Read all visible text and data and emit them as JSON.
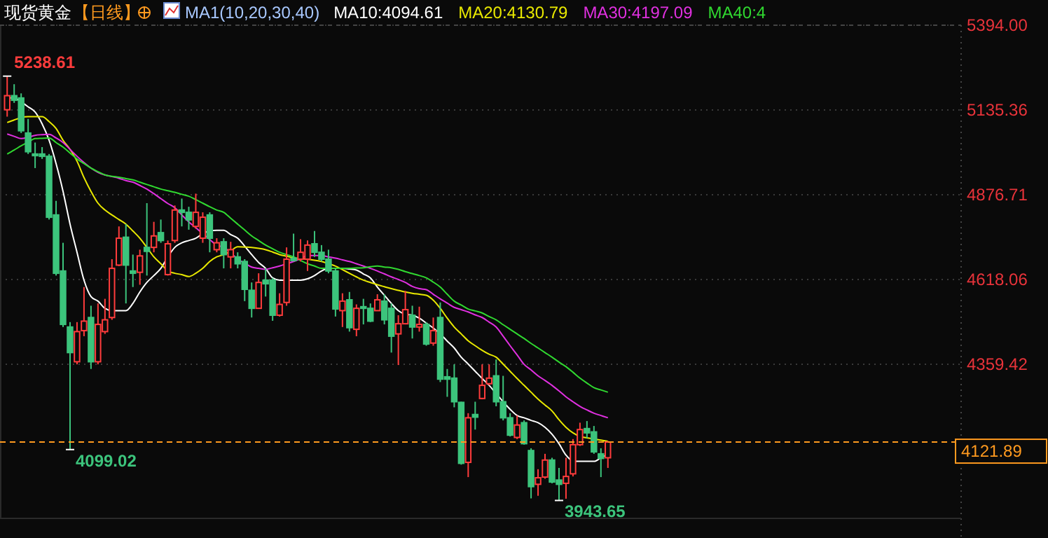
{
  "chart_data": {
    "type": "candlestick",
    "title": "现货黄金",
    "subtitle": "【日线】",
    "legend_title": "MA1(10,20,30,40)",
    "legend": "top",
    "grid": "y",
    "tick_labels": "y",
    "categories": [
      null,
      null,
      null,
      null,
      null,
      null,
      null,
      null,
      null,
      null,
      null,
      null,
      null,
      null,
      null,
      null,
      null,
      null,
      null,
      null,
      null,
      null,
      null,
      null,
      null,
      null,
      null,
      null,
      null,
      null,
      null,
      null,
      null,
      null,
      null,
      null,
      null,
      null,
      null,
      null,
      null,
      null,
      null,
      null,
      null,
      null,
      null,
      null,
      null,
      null,
      null,
      null,
      null,
      null,
      null,
      null,
      null,
      null,
      null,
      null,
      null,
      null,
      null,
      null,
      null,
      null,
      null,
      null,
      null,
      null,
      null,
      null,
      null,
      null,
      null,
      null,
      null,
      null,
      null,
      null,
      null,
      null,
      null,
      null,
      null,
      null,
      null
    ],
    "ylim": [
      3889,
      5394
    ],
    "yticks": [
      {
        "value": 5394,
        "label": "5394.00"
      },
      5135.36,
      4876.71,
      4618.06,
      4359.42
    ],
    "ref_lines": [
      {
        "axis": "y",
        "value": 4121.89,
        "label": "4121.89",
        "color": "#ff9a1f",
        "line_style": "dashed"
      }
    ],
    "annotations": [
      "5238.61",
      "4099.02",
      "3943.65"
    ],
    "series": [
      {
        "type": "candlestick",
        "ohlc": [
          [
            5136,
            5238.61,
            5115,
            5179
          ],
          [
            5179,
            5214,
            5157,
            5165
          ],
          [
            5172,
            5186,
            5065,
            5072
          ],
          [
            5065,
            5108,
            5001,
            5008
          ],
          [
            5001,
            5036,
            4958,
            4996
          ],
          [
            5001,
            5022,
            4986,
            4994
          ],
          [
            4994,
            5001,
            4801,
            4808
          ],
          [
            4815,
            4858,
            4630,
            4637
          ],
          [
            4644,
            4730,
            4473,
            4481
          ],
          [
            4473,
            4488,
            4099.02,
            4395
          ],
          [
            4367,
            4488,
            4359,
            4459
          ],
          [
            4462,
            4595,
            4445,
            4491
          ],
          [
            4502,
            4538,
            4345,
            4367
          ],
          [
            4367,
            4545,
            4359,
            4481
          ],
          [
            4459,
            4559,
            4452,
            4495
          ],
          [
            4502,
            4680,
            4495,
            4652
          ],
          [
            4662,
            4780,
            4659,
            4744
          ],
          [
            4747,
            4787,
            4545,
            4662
          ],
          [
            4644,
            4694,
            4595,
            4637
          ],
          [
            4640,
            4709,
            4602,
            4690
          ],
          [
            4716,
            4851,
            4630,
            4704
          ],
          [
            4716,
            4794,
            4701,
            4751
          ],
          [
            4761,
            4801,
            4730,
            4737
          ],
          [
            4633,
            4737,
            4630,
            4727
          ],
          [
            4737,
            4844,
            4730,
            4830
          ],
          [
            4830,
            4865,
            4780,
            4823
          ],
          [
            4823,
            4840,
            4770,
            4800
          ],
          [
            4780,
            4880,
            4773,
            4823
          ],
          [
            4744,
            4823,
            4730,
            4808
          ],
          [
            4815,
            4823,
            4701,
            4744
          ],
          [
            4709,
            4744,
            4701,
            4730
          ],
          [
            4733,
            4744,
            4652,
            4694
          ],
          [
            4687,
            4733,
            4652,
            4709
          ],
          [
            4687,
            4701,
            4652,
            4666
          ],
          [
            4673,
            4680,
            4552,
            4588
          ],
          [
            4585,
            4609,
            4502,
            4530
          ],
          [
            4530,
            4637,
            4530,
            4609
          ],
          [
            4616,
            4652,
            4566,
            4605
          ],
          [
            4616,
            4623,
            4492,
            4509
          ],
          [
            4509,
            4576,
            4505,
            4542
          ],
          [
            4548,
            4716,
            4538,
            4680
          ],
          [
            4683,
            4758,
            4673,
            4676
          ],
          [
            4680,
            4741,
            4673,
            4701
          ],
          [
            4680,
            4737,
            4644,
            4723
          ],
          [
            4727,
            4766,
            4687,
            4701
          ],
          [
            4701,
            4723,
            4673,
            4680
          ],
          [
            4680,
            4709,
            4637,
            4644
          ],
          [
            4644,
            4652,
            4505,
            4528
          ],
          [
            4523,
            4576,
            4473,
            4552
          ],
          [
            4556,
            4580,
            4459,
            4471
          ],
          [
            4466,
            4542,
            4445,
            4530
          ],
          [
            4535,
            4559,
            4481,
            4530
          ],
          [
            4530,
            4545,
            4488,
            4491
          ],
          [
            4523,
            4573,
            4523,
            4556
          ],
          [
            4552,
            4573,
            4481,
            4495
          ],
          [
            4530,
            4545,
            4395,
            4445
          ],
          [
            4452,
            4509,
            4357,
            4483
          ],
          [
            4483,
            4583,
            4481,
            4526
          ],
          [
            4509,
            4538,
            4438,
            4473
          ],
          [
            4473,
            4535,
            4459,
            4481
          ],
          [
            4481,
            4488,
            4416,
            4421
          ],
          [
            4424,
            4502,
            4416,
            4462
          ],
          [
            4502,
            4548,
            4305,
            4314
          ],
          [
            4321,
            4345,
            4260,
            4314
          ],
          [
            4317,
            4359,
            4228,
            4245
          ],
          [
            4243,
            4245,
            4053,
            4057
          ],
          [
            4060,
            4210,
            4015,
            4196
          ],
          [
            4206,
            4245,
            4160,
            4198
          ],
          [
            4255,
            4359,
            4253,
            4295
          ],
          [
            4300,
            4359,
            4295,
            4317
          ],
          [
            4324,
            4374,
            4231,
            4245
          ],
          [
            4245,
            4324,
            4188,
            4196
          ],
          [
            4196,
            4210,
            4139,
            4143
          ],
          [
            4136,
            4203,
            4131,
            4174
          ],
          [
            4181,
            4188,
            4114,
            4117
          ],
          [
            4096,
            4103,
            3950,
            3986
          ],
          [
            3993,
            4039,
            3958,
            4013
          ],
          [
            4015,
            4086,
            4010,
            4067
          ],
          [
            4067,
            4074,
            3996,
            4000
          ],
          [
            4006,
            4043,
            3943.65,
            3993
          ],
          [
            3996,
            4074,
            3949,
            4017
          ],
          [
            4025,
            4131,
            4017,
            4114
          ],
          [
            4114,
            4181,
            4110,
            4160
          ],
          [
            4163,
            4186,
            4134,
            4150
          ],
          [
            4153,
            4171,
            4086,
            4092
          ],
          [
            4086,
            4103,
            4015,
            4072
          ],
          [
            4074,
            4125,
            4043,
            4121.89
          ]
        ],
        "colors": [
          "#ff3c3c",
          "#3cc47c",
          "#3cc47c",
          "#3cc47c",
          "#3cc47c",
          "#3cc47c",
          "#3cc47c",
          "#3cc47c",
          "#3cc47c",
          "#3cc47c",
          "#ff3c3c",
          "#ff3c3c",
          "#3cc47c",
          "#ff3c3c",
          "#ff3c3c",
          "#ff3c3c",
          "#ff3c3c",
          "#3cc47c",
          "#3cc47c",
          "#ff3c3c",
          "#3cc47c",
          "#ff3c3c",
          "#3cc47c",
          "#ff3c3c",
          "#ff3c3c",
          "#3cc47c",
          "#3cc47c",
          "#ff3c3c",
          "#ff3c3c",
          "#3cc47c",
          "#ff3c3c",
          "#3cc47c",
          "#ff3c3c",
          "#3cc47c",
          "#3cc47c",
          "#3cc47c",
          "#ff3c3c",
          "#3cc47c",
          "#3cc47c",
          "#ff3c3c",
          "#ff3c3c",
          "#3cc47c",
          "#ff3c3c",
          "#ff3c3c",
          "#3cc47c",
          "#3cc47c",
          "#3cc47c",
          "#3cc47c",
          "#ff3c3c",
          "#3cc47c",
          "#ff3c3c",
          "#3cc47c",
          "#3cc47c",
          "#ff3c3c",
          "#3cc47c",
          "#3cc47c",
          "#ff3c3c",
          "#ff3c3c",
          "#3cc47c",
          "#ff3c3c",
          "#3cc47c",
          "#ff3c3c",
          "#3cc47c",
          "#3cc47c",
          "#3cc47c",
          "#3cc47c",
          "#ff3c3c",
          "#3cc47c",
          "#ff3c3c",
          "#ff3c3c",
          "#3cc47c",
          "#3cc47c",
          "#3cc47c",
          "#ff3c3c",
          "#3cc47c",
          "#3cc47c",
          "#ff3c3c",
          "#ff3c3c",
          "#3cc47c",
          "#3cc47c",
          "#ff3c3c",
          "#ff3c3c",
          "#ff3c3c",
          "#3cc47c",
          "#3cc47c",
          "#3cc47c",
          "#ff3c3c"
        ]
      },
      {
        "type": "line",
        "name": "MA10:4094.61",
        "color": "#ffffff",
        "values": [
          5172,
          5172,
          5160,
          5145,
          5129,
          5093,
          5043,
          4972,
          4887,
          4787,
          4701,
          4616,
          4566,
          4552,
          4530,
          4523,
          4523,
          4523,
          4545,
          4580,
          4609,
          4630,
          4652,
          4687,
          4716,
          4730,
          4737,
          4744,
          4758,
          4766,
          4768,
          4768,
          4755,
          4744,
          4720,
          4694,
          4670,
          4652,
          4623,
          4616,
          4616,
          4616,
          4616,
          4620,
          4630,
          4644,
          4652,
          4652,
          4652,
          4650,
          4647,
          4635,
          4623,
          4595,
          4570,
          4545,
          4523,
          4512,
          4509,
          4500,
          4485,
          4470,
          4452,
          4430,
          4409,
          4381,
          4360,
          4338,
          4316,
          4295,
          4270,
          4245,
          4222,
          4203,
          4196,
          4188,
          4181,
          4167,
          4146,
          4117,
          4082,
          4064,
          4063,
          4063,
          4063,
          4074,
          4085
        ]
      },
      {
        "type": "line",
        "name": "MA20:4130.79",
        "color": "#e8e800",
        "values": [
          5097,
          5105,
          5112,
          5115,
          5115,
          5115,
          5100,
          5079,
          5043,
          5015,
          4979,
          4929,
          4887,
          4851,
          4830,
          4815,
          4801,
          4787,
          4766,
          4744,
          4716,
          4687,
          4666,
          4644,
          4637,
          4633,
          4627,
          4637,
          4652,
          4673,
          4687,
          4694,
          4705,
          4718,
          4717,
          4716,
          4713,
          4709,
          4702,
          4694,
          4689,
          4684,
          4682,
          4680,
          4677,
          4673,
          4666,
          4659,
          4648,
          4637,
          4626,
          4616,
          4609,
          4602,
          4596,
          4590,
          4585,
          4580,
          4576,
          4573,
          4570,
          4555,
          4530,
          4500,
          4473,
          4452,
          4431,
          4416,
          4402,
          4390,
          4381,
          4360,
          4338,
          4316,
          4295,
          4274,
          4253,
          4235,
          4217,
          4190,
          4167,
          4150,
          4139,
          4135,
          4131,
          4128,
          4124
        ]
      },
      {
        "type": "line",
        "name": "MA30:4197.09",
        "color": "#e030e0",
        "values": [
          5062,
          5055,
          5048,
          5052,
          5058,
          5060,
          5061,
          5050,
          5036,
          5015,
          4994,
          4975,
          4958,
          4945,
          4937,
          4932,
          4927,
          4920,
          4915,
          4905,
          4894,
          4880,
          4865,
          4850,
          4837,
          4815,
          4794,
          4776,
          4758,
          4740,
          4723,
          4716,
          4700,
          4680,
          4668,
          4656,
          4652,
          4649,
          4654,
          4659,
          4666,
          4673,
          4682,
          4691,
          4691,
          4691,
          4687,
          4683,
          4678,
          4673,
          4666,
          4659,
          4652,
          4644,
          4635,
          4626,
          4618,
          4609,
          4597,
          4590,
          4587,
          4573,
          4559,
          4546,
          4533,
          4526,
          4519,
          4510,
          4502,
          4488,
          4473,
          4445,
          4416,
          4388,
          4359,
          4342,
          4324,
          4310,
          4295,
          4278,
          4260,
          4245,
          4231,
          4220,
          4210,
          4203,
          4196
        ]
      },
      {
        "type": "line",
        "name": "MA40:4",
        "color": "#30d830",
        "values": [
          5001,
          5013,
          5026,
          5037,
          5048,
          5049,
          5050,
          5036,
          5022,
          5004,
          4986,
          4972,
          4958,
          4947,
          4937,
          4933,
          4930,
          4926,
          4922,
          4915,
          4908,
          4901,
          4894,
          4889,
          4884,
          4878,
          4872,
          4862,
          4851,
          4840,
          4830,
          4823,
          4805,
          4787,
          4769,
          4751,
          4737,
          4723,
          4712,
          4701,
          4694,
          4687,
          4676,
          4666,
          4659,
          4652,
          4652,
          4652,
          4652,
          4652,
          4653,
          4654,
          4657,
          4659,
          4656,
          4654,
          4649,
          4642,
          4636,
          4630,
          4623,
          4610,
          4595,
          4573,
          4552,
          4540,
          4528,
          4522,
          4516,
          4505,
          4495,
          4480,
          4466,
          4452,
          4438,
          4423,
          4409,
          4395,
          4381,
          4366,
          4352,
          4335,
          4317,
          4302,
          4288,
          4281,
          4274
        ]
      }
    ]
  }
}
